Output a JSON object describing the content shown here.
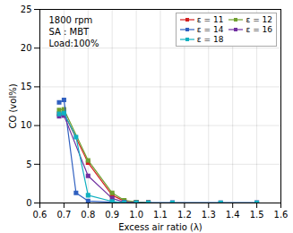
{
  "chart_data": {
    "type": "line",
    "annotation": "1800 rpm\nSA : MBT\nLoad:100%",
    "xlabel": "Excess air ratio (λ)",
    "ylabel": "CO (vol%)",
    "xlim": [
      0.6,
      1.6
    ],
    "ylim": [
      0,
      25
    ],
    "xticks": [
      0.6,
      0.7,
      0.8,
      0.9,
      {
        "value": 1.0,
        "label": "1.0"
      },
      1.1,
      1.2,
      1.3,
      1.4,
      1.5,
      1.6
    ],
    "yticks": [
      0,
      5,
      10,
      15,
      20,
      25
    ],
    "grid": true,
    "legend": "upper right",
    "series": [
      {
        "name": "ε = 11",
        "color": "#d42020",
        "marker": "square",
        "x": [
          0.68,
          0.7,
          0.8,
          0.9,
          0.95,
          1.0,
          1.05
        ],
        "values": [
          11.5,
          11.6,
          5.2,
          1.0,
          0.25,
          0.1,
          0.05
        ]
      },
      {
        "name": "ε = 12",
        "color": "#70a030",
        "marker": "square",
        "x": [
          0.68,
          0.7,
          0.8,
          0.9,
          0.95,
          1.0,
          1.05
        ],
        "values": [
          12.0,
          12.1,
          5.5,
          1.3,
          0.35,
          0.12,
          0.05
        ]
      },
      {
        "name": "ε = 14",
        "color": "#3060c0",
        "marker": "square",
        "x": [
          0.68,
          0.7,
          0.75,
          0.8,
          0.9,
          0.95,
          1.0,
          1.05,
          1.15,
          1.5
        ],
        "values": [
          13.0,
          13.3,
          1.3,
          0.25,
          0.1,
          0.05,
          0.02,
          0.02,
          0.02,
          0.02
        ]
      },
      {
        "name": "ε = 16",
        "color": "#7030a0",
        "marker": "square",
        "x": [
          0.68,
          0.7,
          0.8,
          0.9,
          0.95,
          1.0,
          1.05,
          1.15,
          1.35,
          1.5
        ],
        "values": [
          11.2,
          11.3,
          3.5,
          0.6,
          0.1,
          0.03,
          0.02,
          0.02,
          0.02,
          0.02
        ]
      },
      {
        "name": "ε = 18",
        "color": "#10b0c0",
        "marker": "square",
        "x": [
          0.68,
          0.7,
          0.75,
          0.8,
          0.9,
          0.95,
          1.0,
          1.05,
          1.15,
          1.35,
          1.5
        ],
        "values": [
          11.5,
          11.6,
          8.5,
          1.0,
          0.2,
          0.05,
          0.02,
          0.02,
          0.02,
          0.02,
          0.02
        ]
      }
    ]
  }
}
